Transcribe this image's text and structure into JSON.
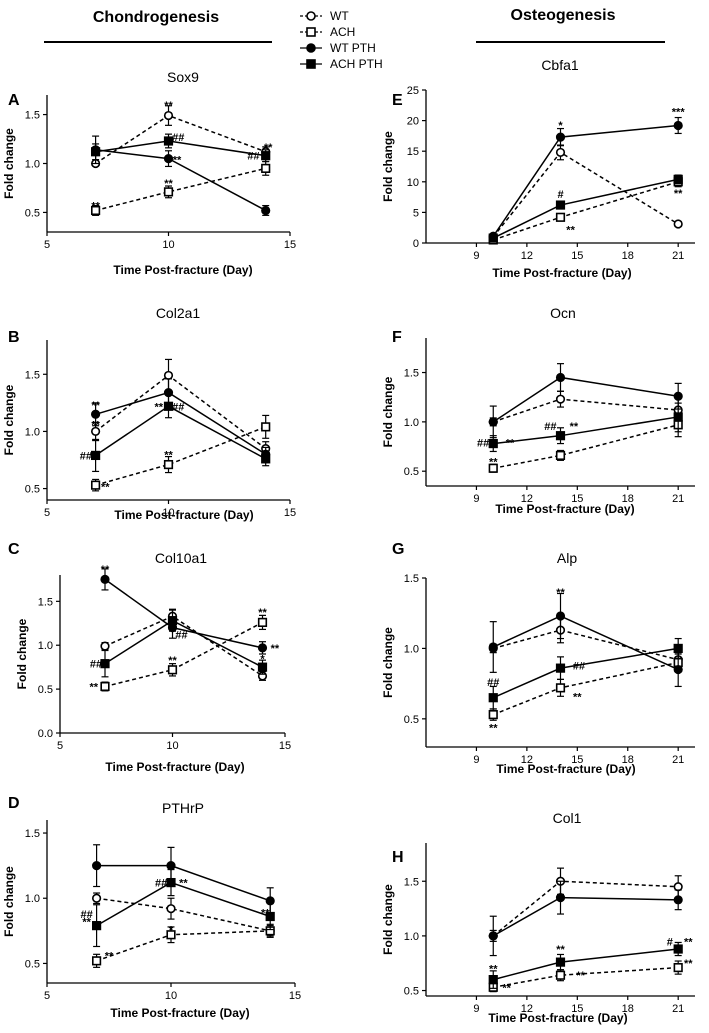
{
  "figure": {
    "header_left": "Chondrogenesis",
    "header_right": "Osteogenesis"
  },
  "legend": {
    "entries": [
      {
        "label": "WT",
        "marker": "open-circle",
        "dashed": true
      },
      {
        "label": "ACH",
        "marker": "open-square",
        "dashed": true
      },
      {
        "label": "WT PTH",
        "marker": "filled-circle",
        "dashed": false
      },
      {
        "label": "ACH PTH",
        "marker": "filled-square",
        "dashed": false
      }
    ]
  },
  "chart_data": [
    {
      "panel": "A",
      "title": "Sox9",
      "type": "line",
      "xlabel": "Time Post-fracture (Day)",
      "ylabel": "Fold change",
      "xlim": [
        5,
        15
      ],
      "ylim": [
        0.3,
        1.7
      ],
      "xticks": [
        5,
        10,
        15
      ],
      "yticks": [
        0.5,
        1.0,
        1.5
      ],
      "x": [
        7,
        10,
        14
      ],
      "series": [
        {
          "name": "WT",
          "values": [
            1.0,
            1.49,
            1.12
          ],
          "errors": [
            0.02,
            0.1,
            0.05
          ]
        },
        {
          "name": "ACH",
          "values": [
            0.52,
            0.71,
            0.95
          ],
          "errors": [
            0.05,
            0.06,
            0.07
          ]
        },
        {
          "name": "WT PTH",
          "values": [
            1.14,
            1.05,
            0.52
          ],
          "errors": [
            0.14,
            0.08,
            0.05
          ]
        },
        {
          "name": "ACH PTH",
          "values": [
            1.12,
            1.23,
            1.08
          ],
          "errors": [
            0.08,
            0.07,
            0.06
          ]
        }
      ],
      "annotations": [
        {
          "x": 7,
          "y": 0.57,
          "text": "**"
        },
        {
          "x": 10,
          "y": 1.6,
          "text": "**"
        },
        {
          "x": 10.4,
          "y": 1.27,
          "text": "##"
        },
        {
          "x": 10.35,
          "y": 1.04,
          "text": "**"
        },
        {
          "x": 10,
          "y": 0.8,
          "text": "**"
        },
        {
          "x": 13.5,
          "y": 1.08,
          "text": "##"
        },
        {
          "x": 14.1,
          "y": 1.17,
          "text": "**"
        }
      ]
    },
    {
      "panel": "B",
      "title": "Col2a1",
      "type": "line",
      "xlabel": "Time Post-fracture (Day)",
      "ylabel": "Fold change",
      "xlim": [
        5,
        15
      ],
      "ylim": [
        0.4,
        1.8
      ],
      "xticks": [
        5,
        10,
        15
      ],
      "yticks": [
        0.5,
        1.0,
        1.5
      ],
      "x": [
        7,
        10,
        14
      ],
      "series": [
        {
          "name": "WT",
          "values": [
            1.0,
            1.49,
            0.85
          ],
          "errors": [
            0.08,
            0.14,
            0.06
          ]
        },
        {
          "name": "ACH",
          "values": [
            0.53,
            0.71,
            1.04
          ],
          "errors": [
            0.05,
            0.07,
            0.1
          ]
        },
        {
          "name": "WT PTH",
          "values": [
            1.15,
            1.34,
            0.8
          ],
          "errors": [
            0.1,
            0.12,
            0.06
          ]
        },
        {
          "name": "ACH PTH",
          "values": [
            0.79,
            1.22,
            0.76
          ],
          "errors": [
            0.14,
            0.1,
            0.06
          ]
        }
      ],
      "annotations": [
        {
          "x": 7,
          "y": 1.23,
          "text": "**"
        },
        {
          "x": 7,
          "y": 1.06,
          "text": "**"
        },
        {
          "x": 6.6,
          "y": 0.79,
          "text": "##"
        },
        {
          "x": 7.4,
          "y": 0.52,
          "text": "**"
        },
        {
          "x": 9.6,
          "y": 1.22,
          "text": "**"
        },
        {
          "x": 10.4,
          "y": 1.22,
          "text": "##"
        },
        {
          "x": 10,
          "y": 0.8,
          "text": "**"
        }
      ]
    },
    {
      "panel": "C",
      "title": "Col10a1",
      "type": "line",
      "xlabel": "Time Post-fracture (Day)",
      "ylabel": "Fold change",
      "xlim": [
        5,
        15
      ],
      "ylim": [
        0.0,
        1.8
      ],
      "xticks": [
        5,
        10,
        15
      ],
      "yticks": [
        0.0,
        0.5,
        1.0,
        1.5
      ],
      "x": [
        7,
        10,
        14
      ],
      "series": [
        {
          "name": "WT",
          "values": [
            0.99,
            1.33,
            0.65
          ],
          "errors": [
            0.04,
            0.08,
            0.05
          ]
        },
        {
          "name": "ACH",
          "values": [
            0.53,
            0.72,
            1.26
          ],
          "errors": [
            0.05,
            0.07,
            0.08
          ]
        },
        {
          "name": "WT PTH",
          "values": [
            1.75,
            1.2,
            0.97
          ],
          "errors": [
            0.12,
            0.12,
            0.07
          ]
        },
        {
          "name": "ACH PTH",
          "values": [
            0.79,
            1.28,
            0.75
          ],
          "errors": [
            0.15,
            0.12,
            0.08
          ]
        }
      ],
      "annotations": [
        {
          "x": 7,
          "y": 1.87,
          "text": "**"
        },
        {
          "x": 6.6,
          "y": 0.79,
          "text": "##"
        },
        {
          "x": 6.5,
          "y": 0.53,
          "text": "**"
        },
        {
          "x": 10,
          "y": 0.83,
          "text": "**"
        },
        {
          "x": 10.4,
          "y": 1.12,
          "text": "##"
        },
        {
          "x": 14,
          "y": 1.38,
          "text": "**"
        },
        {
          "x": 14.55,
          "y": 0.97,
          "text": "**"
        },
        {
          "x": 14,
          "y": 0.85,
          "text": "*"
        }
      ]
    },
    {
      "panel": "D",
      "title": "PTHrP",
      "type": "line",
      "xlabel": "Time Post-fracture (Day)",
      "ylabel": "Fold change",
      "xlim": [
        5,
        15
      ],
      "ylim": [
        0.35,
        1.6
      ],
      "xticks": [
        5,
        10,
        15
      ],
      "yticks": [
        0.5,
        1.0,
        1.5
      ],
      "x": [
        7,
        10,
        14
      ],
      "series": [
        {
          "name": "WT",
          "values": [
            1.0,
            0.92,
            0.75
          ],
          "errors": [
            0.04,
            0.08,
            0.05
          ]
        },
        {
          "name": "ACH",
          "values": [
            0.52,
            0.72,
            0.75
          ],
          "errors": [
            0.05,
            0.06,
            0.04
          ]
        },
        {
          "name": "WT PTH",
          "values": [
            1.25,
            1.25,
            0.98
          ],
          "errors": [
            0.16,
            0.14,
            0.1
          ]
        },
        {
          "name": "ACH PTH",
          "values": [
            0.79,
            1.12,
            0.86
          ],
          "errors": [
            0.16,
            0.1,
            0.1
          ]
        }
      ],
      "annotations": [
        {
          "x": 6.6,
          "y": 0.88,
          "text": "##"
        },
        {
          "x": 6.6,
          "y": 0.82,
          "text": "**"
        },
        {
          "x": 7.5,
          "y": 0.56,
          "text": "**"
        },
        {
          "x": 9.6,
          "y": 1.12,
          "text": "##"
        },
        {
          "x": 10.5,
          "y": 1.12,
          "text": "**"
        },
        {
          "x": 10,
          "y": 0.76,
          "text": "*"
        },
        {
          "x": 13.8,
          "y": 0.89,
          "text": "**"
        }
      ]
    },
    {
      "panel": "E",
      "title": "Cbfa1",
      "type": "line",
      "xlabel": "Time Post-fracture (Day)",
      "ylabel": "Fold change",
      "xlim": [
        6,
        22
      ],
      "ylim": [
        0,
        25
      ],
      "xticks": [
        9,
        12,
        15,
        18,
        21
      ],
      "yticks": [
        0,
        5,
        10,
        15,
        20,
        25
      ],
      "x": [
        10,
        14,
        21
      ],
      "series": [
        {
          "name": "WT",
          "values": [
            1.0,
            14.8,
            3.1
          ],
          "errors": [
            0.3,
            1.2,
            0.4
          ]
        },
        {
          "name": "ACH",
          "values": [
            0.5,
            4.2,
            10.0
          ],
          "errors": [
            0.2,
            0.5,
            0.8
          ]
        },
        {
          "name": "WT PTH",
          "values": [
            1.1,
            17.3,
            19.2
          ],
          "errors": [
            0.3,
            1.4,
            1.3
          ]
        },
        {
          "name": "ACH PTH",
          "values": [
            0.8,
            6.2,
            10.4
          ],
          "errors": [
            0.2,
            0.6,
            0.7
          ]
        }
      ],
      "annotations": [
        {
          "x": 14,
          "y": 19.3,
          "text": "*"
        },
        {
          "x": 14,
          "y": 8.0,
          "text": "#"
        },
        {
          "x": 14.6,
          "y": 2.2,
          "text": "**"
        },
        {
          "x": 21,
          "y": 21.5,
          "text": "***"
        },
        {
          "x": 21,
          "y": 8.2,
          "text": "**"
        }
      ]
    },
    {
      "panel": "F",
      "title": "Ocn",
      "type": "line",
      "xlabel": "Time Post-fracture (Day)",
      "ylabel": "Fold change",
      "xlim": [
        6,
        22
      ],
      "ylim": [
        0.35,
        1.85
      ],
      "xticks": [
        9,
        12,
        15,
        18,
        21
      ],
      "yticks": [
        0.5,
        1.0,
        1.5
      ],
      "x": [
        10,
        14,
        21
      ],
      "series": [
        {
          "name": "WT",
          "values": [
            1.0,
            1.23,
            1.12
          ],
          "errors": [
            0.04,
            0.08,
            0.07
          ]
        },
        {
          "name": "ACH",
          "values": [
            0.53,
            0.66,
            0.97
          ],
          "errors": [
            0.04,
            0.05,
            0.07
          ]
        },
        {
          "name": "WT PTH",
          "values": [
            1.0,
            1.45,
            1.26
          ],
          "errors": [
            0.16,
            0.14,
            0.13
          ]
        },
        {
          "name": "ACH PTH",
          "values": [
            0.78,
            0.86,
            1.05
          ],
          "errors": [
            0.08,
            0.08,
            0.2
          ]
        }
      ],
      "annotations": [
        {
          "x": 9.4,
          "y": 0.79,
          "text": "##"
        },
        {
          "x": 11.0,
          "y": 0.79,
          "text": "**"
        },
        {
          "x": 10,
          "y": 0.6,
          "text": "**"
        },
        {
          "x": 13.4,
          "y": 0.96,
          "text": "##"
        },
        {
          "x": 14.8,
          "y": 0.96,
          "text": "**"
        }
      ]
    },
    {
      "panel": "G",
      "title": "Alp",
      "type": "line",
      "xlabel": "Time Post-fracture (Day)",
      "ylabel": "Fold change",
      "xlim": [
        6,
        22
      ],
      "ylim": [
        0.3,
        1.5
      ],
      "xticks": [
        9,
        12,
        15,
        18,
        21
      ],
      "yticks": [
        0.5,
        1.0,
        1.5
      ],
      "x": [
        10,
        14,
        21
      ],
      "series": [
        {
          "name": "WT",
          "values": [
            1.0,
            1.13,
            0.92
          ],
          "errors": [
            0.03,
            0.09,
            0.06
          ]
        },
        {
          "name": "ACH",
          "values": [
            0.53,
            0.72,
            0.9
          ],
          "errors": [
            0.04,
            0.06,
            0.06
          ]
        },
        {
          "name": "WT PTH",
          "values": [
            1.01,
            1.23,
            0.85
          ],
          "errors": [
            0.18,
            0.16,
            0.12
          ]
        },
        {
          "name": "ACH PTH",
          "values": [
            0.65,
            0.86,
            1.0
          ],
          "errors": [
            0.08,
            0.08,
            0.07
          ]
        }
      ],
      "annotations": [
        {
          "x": 10,
          "y": 0.76,
          "text": "##"
        },
        {
          "x": 10,
          "y": 0.44,
          "text": "**"
        },
        {
          "x": 14,
          "y": 1.4,
          "text": "**"
        },
        {
          "x": 15.1,
          "y": 0.88,
          "text": "##"
        },
        {
          "x": 15.0,
          "y": 0.66,
          "text": "**"
        }
      ]
    },
    {
      "panel": "H",
      "title": "Col1",
      "type": "line",
      "xlabel": "Time Post-fracture (Day)",
      "ylabel": "Fold change",
      "xlim": [
        6,
        22
      ],
      "ylim": [
        0.45,
        1.85
      ],
      "xticks": [
        9,
        12,
        15,
        18,
        21
      ],
      "yticks": [
        0.5,
        1.0,
        1.5
      ],
      "x": [
        10,
        14,
        21
      ],
      "series": [
        {
          "name": "WT",
          "values": [
            1.0,
            1.5,
            1.45
          ],
          "errors": [
            0.05,
            0.12,
            0.1
          ]
        },
        {
          "name": "ACH",
          "values": [
            0.53,
            0.64,
            0.71
          ],
          "errors": [
            0.04,
            0.05,
            0.06
          ]
        },
        {
          "name": "WT PTH",
          "values": [
            1.0,
            1.35,
            1.33
          ],
          "errors": [
            0.18,
            0.15,
            0.09
          ]
        },
        {
          "name": "ACH PTH",
          "values": [
            0.6,
            0.76,
            0.88
          ],
          "errors": [
            0.08,
            0.07,
            0.06
          ]
        }
      ],
      "annotations": [
        {
          "x": 10,
          "y": 0.7,
          "text": "**"
        },
        {
          "x": 10.8,
          "y": 0.53,
          "text": "**"
        },
        {
          "x": 14,
          "y": 0.88,
          "text": "**"
        },
        {
          "x": 15.2,
          "y": 0.64,
          "text": "**"
        },
        {
          "x": 20.5,
          "y": 0.95,
          "text": "#"
        },
        {
          "x": 21.6,
          "y": 0.95,
          "text": "**"
        },
        {
          "x": 21.6,
          "y": 0.75,
          "text": "**"
        }
      ]
    }
  ]
}
